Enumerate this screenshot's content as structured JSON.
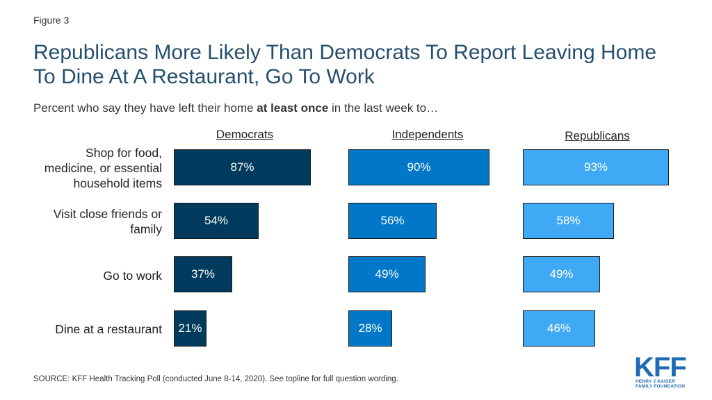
{
  "figure_label": "Figure 3",
  "title": "Republicans More Likely Than Democrats To Report Leaving Home To Dine At A Restaurant, Go To Work",
  "subtitle_pre": "Percent who say they have left their home ",
  "subtitle_bold": "at least once",
  "subtitle_post": " in the last week to…",
  "source": "SOURCE: KFF Health Tracking Poll (conducted June 8-14, 2020). See topline for full question wording.",
  "logo": {
    "main": "KFF",
    "sub_line1": "HENRY J KAISER",
    "sub_line2": "FAMILY FOUNDATION"
  },
  "chart_data": {
    "type": "bar",
    "orientation": "horizontal",
    "categories": [
      "Shop for food, medicine, or essential household items",
      "Visit close friends or family",
      "Go to work",
      "Dine at a restaurant"
    ],
    "category_lines": [
      [
        "Shop for food,",
        "medicine, or essential",
        "household items"
      ],
      [
        "Visit close friends or",
        "family"
      ],
      [
        "Go to work"
      ],
      [
        "Dine at a restaurant"
      ]
    ],
    "series": [
      {
        "name": "Democrats",
        "values": [
          87,
          54,
          37,
          21
        ],
        "labels": [
          "87%",
          "54%",
          "37%",
          "21%"
        ],
        "color": "#003a5d"
      },
      {
        "name": "Independents",
        "values": [
          90,
          56,
          49,
          28
        ],
        "labels": [
          "90%",
          "56%",
          "49%",
          "28%"
        ],
        "color": "#0077c8"
      },
      {
        "name": "Republicans",
        "values": [
          93,
          58,
          49,
          46
        ],
        "labels": [
          "93%",
          "58%",
          "49%",
          "46%"
        ],
        "color": "#40a9f5"
      }
    ],
    "xlim": [
      0,
      100
    ],
    "grid": false
  }
}
